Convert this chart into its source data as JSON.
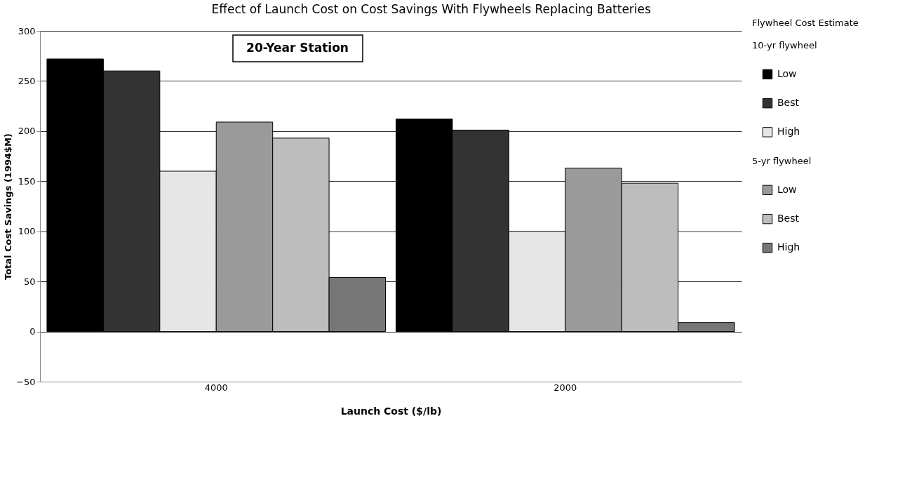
{
  "chart_data": {
    "type": "bar",
    "title": "Effect of Launch Cost on Cost Savings With Flywheels Replacing Batteries",
    "xlabel": "Launch Cost ($/lb)",
    "ylabel": "Total Cost Savings (1994$M)",
    "legend_title": "Flywheel Cost Estimate",
    "annotations": [
      "20-Year Station",
      "10-yr flywheel",
      "5-yr flywheel"
    ],
    "categories": [
      "4000",
      "2000"
    ],
    "series": [
      {
        "name": "Low",
        "color": "#000000",
        "values": [
          272,
          212
        ]
      },
      {
        "name": "Best",
        "color": "#333333",
        "values": [
          260,
          201
        ]
      },
      {
        "name": "High",
        "color": "#e6e6e6",
        "values": [
          160,
          100
        ]
      },
      {
        "name": "Low",
        "color": "#9a9a9a",
        "values": [
          209,
          163
        ]
      },
      {
        "name": "Best",
        "color": "#bdbdbd",
        "values": [
          193,
          148
        ]
      },
      {
        "name": "High",
        "color": "#777777",
        "values": [
          54,
          9
        ]
      }
    ],
    "ylim": [
      -50,
      300
    ],
    "yticks": [
      -50,
      0,
      50,
      100,
      150,
      200,
      250,
      300
    ],
    "grid": "y",
    "legend": "right"
  }
}
